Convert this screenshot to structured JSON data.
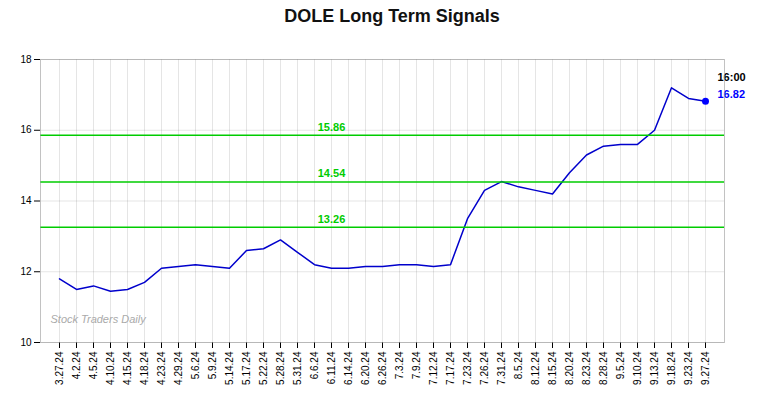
{
  "chart_data": {
    "type": "line",
    "title": "DOLE Long Term Signals",
    "categories": [
      "3.27.24",
      "4.2.24",
      "4.5.24",
      "4.10.24",
      "4.15.24",
      "4.18.24",
      "4.23.24",
      "4.29.24",
      "5.6.24",
      "5.9.24",
      "5.14.24",
      "5.17.24",
      "5.22.24",
      "5.28.24",
      "5.31.24",
      "6.6.24",
      "6.11.24",
      "6.14.24",
      "6.20.24",
      "6.26.24",
      "7.3.24",
      "7.9.24",
      "7.12.24",
      "7.17.24",
      "7.23.24",
      "7.26.24",
      "7.31.24",
      "8.5.24",
      "8.12.24",
      "8.15.24",
      "8.20.24",
      "8.23.24",
      "8.28.24",
      "9.5.24",
      "9.10.24",
      "9.13.24",
      "9.18.24",
      "9.23.24",
      "9.27.24"
    ],
    "values": [
      11.8,
      11.5,
      11.6,
      11.45,
      11.5,
      11.7,
      12.1,
      12.15,
      12.2,
      12.15,
      12.1,
      12.6,
      12.65,
      12.9,
      12.55,
      12.2,
      12.1,
      12.1,
      12.15,
      12.15,
      12.2,
      12.2,
      12.15,
      12.2,
      13.5,
      14.3,
      14.55,
      14.4,
      14.3,
      14.2,
      14.8,
      15.3,
      15.55,
      15.6,
      15.6,
      16.0,
      17.2,
      16.9,
      16.82
    ],
    "color": "#0000cc",
    "hlines": [
      {
        "value": 13.26,
        "label": "13.26",
        "color": "#00cc00"
      },
      {
        "value": 14.54,
        "label": "14.54",
        "color": "#00cc00"
      },
      {
        "value": 15.86,
        "label": "15.86",
        "color": "#00cc00"
      }
    ],
    "annotations": [
      {
        "text": "16:00",
        "color": "#000000"
      },
      {
        "text": "16.82",
        "color": "#0000ff",
        "marker": "dot"
      }
    ],
    "watermark": {
      "text": "Stock Traders Daily",
      "color": "#aaaaaa"
    },
    "ylim": [
      10,
      18
    ],
    "yticks": [
      10,
      12,
      14,
      16,
      18
    ],
    "grid": true
  }
}
